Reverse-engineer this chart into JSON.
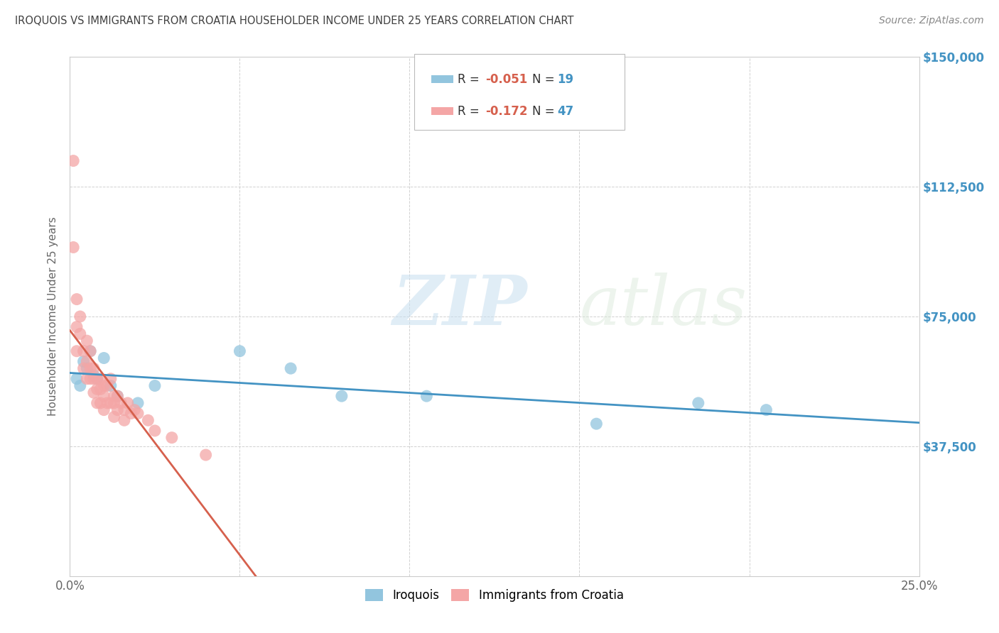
{
  "title": "IROQUOIS VS IMMIGRANTS FROM CROATIA HOUSEHOLDER INCOME UNDER 25 YEARS CORRELATION CHART",
  "source": "Source: ZipAtlas.com",
  "ylabel": "Householder Income Under 25 years",
  "xlim": [
    0.0,
    0.25
  ],
  "ylim": [
    0,
    150000
  ],
  "xticks": [
    0.0,
    0.05,
    0.1,
    0.15,
    0.2,
    0.25
  ],
  "xticklabels": [
    "0.0%",
    "",
    "",
    "",
    "",
    "25.0%"
  ],
  "ytick_positions": [
    0,
    37500,
    75000,
    112500,
    150000
  ],
  "ytick_labels": [
    "",
    "$37,500",
    "$75,000",
    "$112,500",
    "$150,000"
  ],
  "legend_labels": [
    "Iroquois",
    "Immigrants from Croatia"
  ],
  "legend_r_vals": [
    "-0.051",
    "-0.172"
  ],
  "legend_n_vals": [
    "19",
    "47"
  ],
  "blue_color": "#92c5de",
  "pink_color": "#f4a6a6",
  "blue_line_color": "#4393c3",
  "pink_line_color": "#d6604d",
  "watermark_zip": "ZIP",
  "watermark_atlas": "atlas",
  "bg_color": "#ffffff",
  "grid_color": "#cccccc",
  "title_color": "#404040",
  "right_label_color": "#4393c3",
  "accent_color": "#d6604d",
  "blue_points_x": [
    0.002,
    0.003,
    0.004,
    0.005,
    0.006,
    0.007,
    0.008,
    0.01,
    0.012,
    0.014,
    0.02,
    0.025,
    0.05,
    0.065,
    0.08,
    0.105,
    0.155,
    0.185,
    0.205
  ],
  "blue_points_y": [
    57000,
    55000,
    62000,
    60000,
    65000,
    58000,
    57000,
    63000,
    55000,
    52000,
    50000,
    55000,
    65000,
    60000,
    52000,
    52000,
    44000,
    50000,
    48000
  ],
  "pink_points_x": [
    0.001,
    0.001,
    0.002,
    0.002,
    0.002,
    0.003,
    0.003,
    0.004,
    0.004,
    0.005,
    0.005,
    0.005,
    0.006,
    0.006,
    0.006,
    0.007,
    0.007,
    0.007,
    0.008,
    0.008,
    0.008,
    0.009,
    0.009,
    0.009,
    0.01,
    0.01,
    0.01,
    0.011,
    0.011,
    0.012,
    0.012,
    0.013,
    0.013,
    0.013,
    0.014,
    0.014,
    0.015,
    0.016,
    0.016,
    0.017,
    0.018,
    0.019,
    0.02,
    0.023,
    0.025,
    0.03,
    0.04
  ],
  "pink_points_y": [
    120000,
    95000,
    80000,
    72000,
    65000,
    75000,
    70000,
    65000,
    60000,
    68000,
    62000,
    57000,
    65000,
    60000,
    57000,
    60000,
    57000,
    53000,
    57000,
    54000,
    50000,
    57000,
    54000,
    50000,
    55000,
    52000,
    48000,
    55000,
    50000,
    57000,
    50000,
    52000,
    50000,
    46000,
    52000,
    48000,
    50000,
    48000,
    45000,
    50000,
    47000,
    48000,
    47000,
    45000,
    42000,
    40000,
    35000
  ],
  "figsize": [
    14.06,
    8.92
  ],
  "dpi": 100
}
